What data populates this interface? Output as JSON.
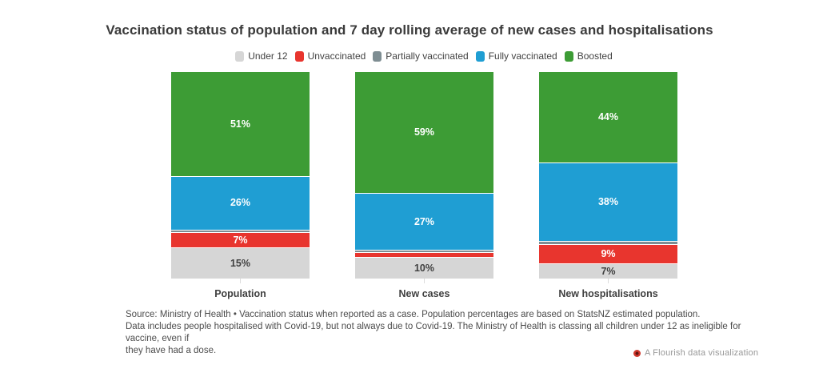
{
  "title": "Vaccination status of population and 7 day rolling average of new cases and hospitalisations",
  "colors": {
    "under_12": "#d6d6d6",
    "unvaccinated": "#e8352e",
    "partially_vaccinated": "#7e8d92",
    "fully_vaccinated": "#1f9ed3",
    "boosted": "#3d9c35",
    "title_text": "#3b3b3b",
    "body_text": "#4c4c4c",
    "attribution_text": "#989898"
  },
  "legend": {
    "items": [
      {
        "label": "Under 12",
        "color": "#d6d6d6"
      },
      {
        "label": "Unvaccinated",
        "color": "#e8352e"
      },
      {
        "label": "Partially vaccinated",
        "color": "#7e8d92"
      },
      {
        "label": "Fully vaccinated",
        "color": "#1f9ed3"
      },
      {
        "label": "Boosted",
        "color": "#3d9c35"
      }
    ]
  },
  "chart_data": {
    "type": "bar",
    "stacked": true,
    "orientation": "vertical",
    "unit": "%",
    "title": "Vaccination status of population and 7 day rolling average of new cases and hospitalisations",
    "categories": [
      "Population",
      "New cases",
      "New hospitalisations"
    ],
    "series": [
      {
        "name": "Boosted",
        "color": "#3d9c35",
        "values": [
          51,
          59,
          44
        ]
      },
      {
        "name": "Fully vaccinated",
        "color": "#1f9ed3",
        "values": [
          26,
          27,
          38
        ]
      },
      {
        "name": "Partially vaccinated",
        "color": "#7e8d92",
        "values": [
          1,
          1,
          1
        ]
      },
      {
        "name": "Unvaccinated",
        "color": "#e8352e",
        "values": [
          7,
          2,
          9
        ]
      },
      {
        "name": "Under 12",
        "color": "#d6d6d6",
        "values": [
          15,
          10,
          7
        ]
      }
    ],
    "visible_bar_labels": {
      "Population": [
        "51%",
        "26%",
        "7%",
        "15%"
      ],
      "New cases": [
        "59%",
        "27%",
        "10%"
      ],
      "New hospitalisations": [
        "44%",
        "38%",
        "9%",
        "7%"
      ]
    },
    "label_min_value_shown": 5,
    "legend_position": "top-center",
    "grid": false
  },
  "footer": {
    "lines": [
      "Source: Ministry of Health • Vaccination status when reported as a case. Population percentages are based on StatsNZ estimated population.",
      "Data includes people hospitalised with Covid-19, but not always due to Covid-19. The Ministry of Health is classing all children under 12 as ineligible for vaccine, even if",
      "they have had a dose."
    ]
  },
  "attribution": {
    "label": "A Flourish data visualization"
  }
}
